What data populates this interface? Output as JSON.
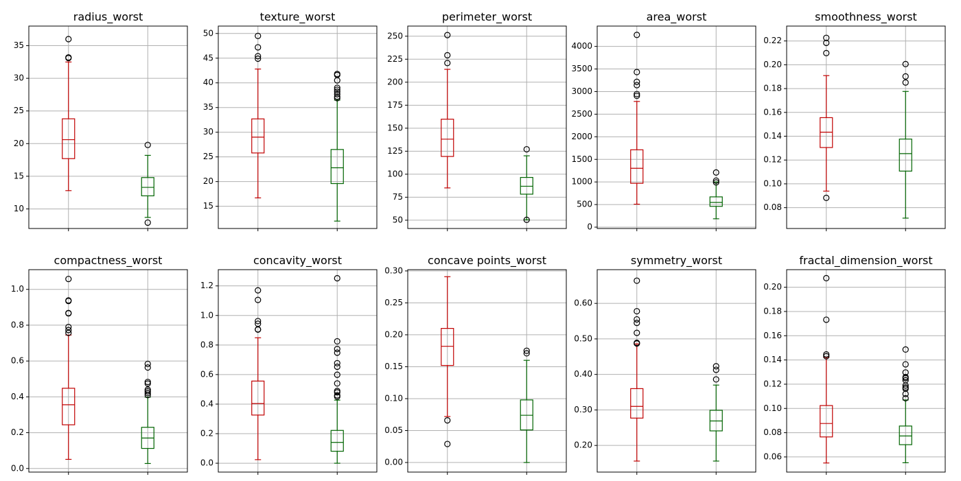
{
  "chart_data": [
    {
      "type": "box",
      "title": "radius_worst",
      "yticks": [
        10,
        15,
        20,
        25,
        30,
        35
      ],
      "ylim": [
        7,
        38
      ],
      "grid": true,
      "groups": [
        {
          "color": "#c00000",
          "whislo": 12.8,
          "q1": 17.7,
          "median": 20.6,
          "q3": 23.8,
          "whishi": 32.5,
          "fliers": [
            36.0,
            33.1,
            33.2
          ]
        },
        {
          "color": "#006400",
          "whislo": 8.7,
          "q1": 12.0,
          "median": 13.3,
          "q3": 14.8,
          "whishi": 18.2,
          "fliers": [
            19.8,
            7.9
          ]
        }
      ]
    },
    {
      "type": "box",
      "title": "texture_worst",
      "yticks": [
        15,
        20,
        25,
        30,
        35,
        40,
        45,
        50
      ],
      "ylim": [
        10.5,
        51.5
      ],
      "grid": true,
      "groups": [
        {
          "color": "#c00000",
          "whislo": 16.7,
          "q1": 25.8,
          "median": 29.0,
          "q3": 32.7,
          "whishi": 42.8,
          "fliers": [
            49.5,
            47.2,
            45.4,
            44.9
          ]
        },
        {
          "color": "#006400",
          "whislo": 12.0,
          "q1": 19.6,
          "median": 22.8,
          "q3": 26.5,
          "whishi": 36.5,
          "fliers": [
            41.8,
            41.6,
            40.5,
            39.0,
            38.6,
            38.2,
            37.7,
            37.2,
            36.9
          ]
        }
      ]
    },
    {
      "type": "box",
      "title": "perimeter_worst",
      "yticks": [
        50,
        75,
        100,
        125,
        150,
        175,
        200,
        225,
        250
      ],
      "ylim": [
        41,
        261
      ],
      "grid": true,
      "groups": [
        {
          "color": "#c00000",
          "whislo": 85.1,
          "q1": 119.3,
          "median": 138.1,
          "q3": 159.8,
          "whishi": 214.0,
          "fliers": [
            251.2,
            229.3,
            220.8
          ]
        },
        {
          "color": "#006400",
          "whislo": 50.4,
          "q1": 78.3,
          "median": 86.9,
          "q3": 96.5,
          "whishi": 120.0,
          "fliers": [
            127.1,
            50.4
          ]
        }
      ]
    },
    {
      "type": "box",
      "title": "area_worst",
      "yticks": [
        0,
        500,
        1000,
        1500,
        2000,
        2500,
        3000,
        3500,
        4000
      ],
      "ylim": [
        -30,
        4450
      ],
      "grid": true,
      "groups": [
        {
          "color": "#c00000",
          "whislo": 508,
          "q1": 970,
          "median": 1303,
          "q3": 1712,
          "whishi": 2782,
          "fliers": [
            4254,
            3432,
            3216,
            3143,
            2944,
            2906
          ]
        },
        {
          "color": "#006400",
          "whislo": 185,
          "q1": 460,
          "median": 547,
          "q3": 670,
          "whishi": 1000,
          "fliers": [
            1210,
            1030,
            990
          ]
        }
      ]
    },
    {
      "type": "box",
      "title": "smoothness_worst",
      "yticks": [
        0.08,
        0.1,
        0.12,
        0.14,
        0.16,
        0.18,
        0.2,
        0.22
      ],
      "ylim": [
        0.0625,
        0.2325
      ],
      "grid": true,
      "groups": [
        {
          "color": "#c00000",
          "whislo": 0.0939,
          "q1": 0.1305,
          "median": 0.1434,
          "q3": 0.1556,
          "whishi": 0.1909,
          "fliers": [
            0.2226,
            0.2184,
            0.2098,
            0.0882
          ]
        },
        {
          "color": "#006400",
          "whislo": 0.0712,
          "q1": 0.1107,
          "median": 0.1254,
          "q3": 0.1376,
          "whishi": 0.1776,
          "fliers": [
            0.2006,
            0.1902,
            0.1851
          ]
        }
      ]
    },
    {
      "type": "box",
      "title": "compactness_worst",
      "yticks": [
        0.0,
        0.2,
        0.4,
        0.6,
        0.8,
        1.0
      ],
      "ylim": [
        -0.02,
        1.11
      ],
      "grid": true,
      "groups": [
        {
          "color": "#c00000",
          "whislo": 0.051,
          "q1": 0.244,
          "median": 0.356,
          "q3": 0.448,
          "whishi": 0.745,
          "fliers": [
            1.058,
            0.938,
            0.935,
            0.868,
            0.866,
            0.79,
            0.773,
            0.757
          ]
        },
        {
          "color": "#006400",
          "whislo": 0.028,
          "q1": 0.112,
          "median": 0.17,
          "q3": 0.23,
          "whishi": 0.398,
          "fliers": [
            0.584,
            0.564,
            0.483,
            0.474,
            0.44,
            0.431,
            0.421,
            0.41
          ]
        }
      ]
    },
    {
      "type": "box",
      "title": "concavity_worst",
      "yticks": [
        0.0,
        0.2,
        0.4,
        0.6,
        0.8,
        1.0,
        1.2
      ],
      "ylim": [
        -0.06,
        1.31
      ],
      "grid": true,
      "groups": [
        {
          "color": "#c00000",
          "whislo": 0.024,
          "q1": 0.326,
          "median": 0.404,
          "q3": 0.556,
          "whishi": 0.849,
          "fliers": [
            1.17,
            1.105,
            0.962,
            0.944,
            0.906,
            0.904
          ]
        },
        {
          "color": "#006400",
          "whislo": 0.0,
          "q1": 0.081,
          "median": 0.141,
          "q3": 0.222,
          "whishi": 0.427,
          "fliers": [
            1.252,
            0.825,
            0.773,
            0.748,
            0.677,
            0.653,
            0.599,
            0.54,
            0.489,
            0.48,
            0.459,
            0.45
          ]
        }
      ]
    },
    {
      "type": "box",
      "title": "concave points_worst",
      "yticks": [
        0.0,
        0.05,
        0.1,
        0.15,
        0.2,
        0.25,
        0.3
      ],
      "ylim": [
        -0.015,
        0.302
      ],
      "grid": true,
      "groups": [
        {
          "color": "#c00000",
          "whislo": 0.072,
          "q1": 0.152,
          "median": 0.182,
          "q3": 0.21,
          "whishi": 0.291,
          "fliers": [
            0.066,
            0.029
          ]
        },
        {
          "color": "#006400",
          "whislo": 0.0,
          "q1": 0.051,
          "median": 0.074,
          "q3": 0.098,
          "whishi": 0.16,
          "fliers": [
            0.175,
            0.171
          ]
        }
      ]
    },
    {
      "type": "box",
      "title": "symmetry_worst",
      "yticks": [
        0.2,
        0.3,
        0.4,
        0.5,
        0.6
      ],
      "ylim": [
        0.125,
        0.695
      ],
      "grid": true,
      "groups": [
        {
          "color": "#c00000",
          "whislo": 0.156,
          "q1": 0.277,
          "median": 0.31,
          "q3": 0.36,
          "whishi": 0.486,
          "fliers": [
            0.664,
            0.578,
            0.555,
            0.545,
            0.517,
            0.489,
            0.487
          ]
        },
        {
          "color": "#006400",
          "whislo": 0.156,
          "q1": 0.241,
          "median": 0.269,
          "q3": 0.299,
          "whishi": 0.37,
          "fliers": [
            0.423,
            0.413,
            0.386
          ]
        }
      ]
    },
    {
      "type": "box",
      "title": "fractal_dimension_worst",
      "yticks": [
        0.06,
        0.08,
        0.1,
        0.12,
        0.14,
        0.16,
        0.18,
        0.2
      ],
      "ylim": [
        0.0475,
        0.2145
      ],
      "grid": true,
      "groups": [
        {
          "color": "#c00000",
          "whislo": 0.055,
          "q1": 0.0765,
          "median": 0.0876,
          "q3": 0.1024,
          "whishi": 0.1421,
          "fliers": [
            0.2075,
            0.1732,
            0.1446,
            0.1431
          ]
        },
        {
          "color": "#006400",
          "whislo": 0.0552,
          "q1": 0.0701,
          "median": 0.0773,
          "q3": 0.0855,
          "whishi": 0.107,
          "fliers": [
            0.1486,
            0.1364,
            0.1297,
            0.1259,
            0.1249,
            0.1233,
            0.1189,
            0.1173,
            0.1163,
            0.112,
            0.1084
          ]
        }
      ]
    }
  ]
}
